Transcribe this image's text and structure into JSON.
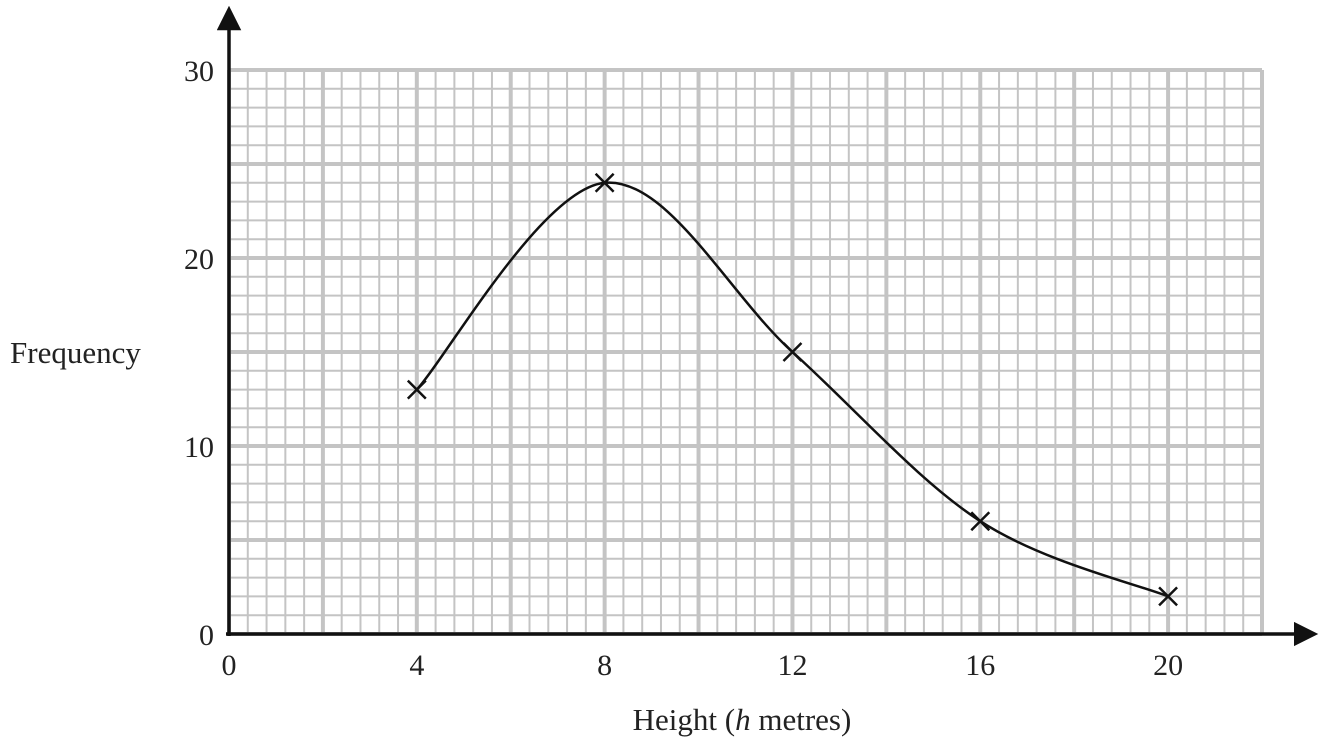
{
  "chart_data": {
    "type": "line",
    "title": "",
    "xlabel": "Height (h metres)",
    "xlabel_parts": {
      "before": "Height (",
      "italic": "h",
      "after": " metres)"
    },
    "ylabel": "Frequency",
    "x": [
      4,
      8,
      12,
      16,
      20
    ],
    "series": [
      {
        "values": [
          13,
          24,
          15,
          6,
          2
        ]
      }
    ],
    "xlim": [
      0,
      22
    ],
    "ylim": [
      0,
      30
    ],
    "x_ticks": [
      0,
      4,
      8,
      12,
      16,
      20
    ],
    "y_ticks": [
      0,
      10,
      20,
      30
    ],
    "grid": true,
    "grid_minor_step": {
      "x": 0.4,
      "y": 1
    },
    "grid_major_step": {
      "x": 2,
      "y": 5
    },
    "marker": "cross",
    "smooth": true,
    "legend": "none"
  },
  "colors": {
    "grid": "#c4c4c4",
    "axis": "#111111",
    "curve": "#111111",
    "text": "#222222",
    "background": "#ffffff"
  }
}
